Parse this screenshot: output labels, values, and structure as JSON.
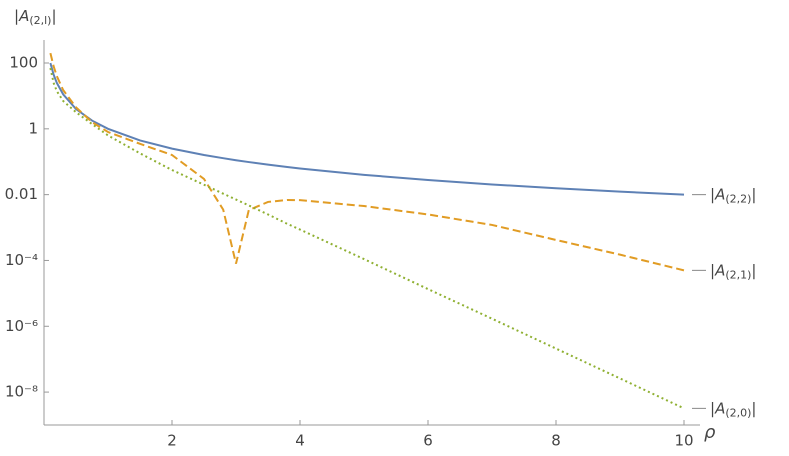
{
  "chart_data": {
    "type": "line",
    "log_y": true,
    "ylabel": "|A(2,l)|",
    "xlabel": "ρ",
    "x": [
      0.1,
      0.15,
      0.2,
      0.3,
      0.5,
      0.75,
      1,
      1.5,
      2,
      2.5,
      2.8,
      3,
      3.2,
      3.5,
      3.8,
      4,
      5,
      6,
      7,
      8,
      9,
      10
    ],
    "series": [
      {
        "name": "|A(2,2)|",
        "color": "#5e81b5",
        "dash": "solid",
        "values": [
          100,
          44.4,
          25,
          11.1,
          4,
          1.78,
          1,
          0.444,
          0.25,
          0.16,
          0.128,
          0.111,
          0.0977,
          0.0816,
          0.0693,
          0.0625,
          0.04,
          0.0278,
          0.0204,
          0.0156,
          0.0123,
          0.01
        ]
      },
      {
        "name": "|A(2,1)|",
        "color": "#e19c24",
        "dash": "dashed",
        "values": [
          200,
          80,
          40,
          15,
          4.5,
          1.6,
          0.8,
          0.35,
          0.16,
          0.03,
          0.0035,
          8e-05,
          0.0034,
          0.006,
          0.0069,
          0.0068,
          0.0045,
          0.0025,
          0.0012,
          0.00042,
          0.00015,
          5e-05
        ]
      },
      {
        "name": "|A(2,0)|",
        "color": "#8fb032",
        "dash": "dotted",
        "values": [
          70,
          25,
          14,
          7,
          3.2,
          1.4,
          0.63,
          0.18,
          0.056,
          0.02,
          0.0107,
          0.0071,
          0.0047,
          0.0025,
          0.0013,
          0.00087,
          0.00011,
          1.35e-05,
          1.7e-06,
          2.1e-07,
          2.6e-08,
          3.2e-09
        ]
      }
    ],
    "xlim": [
      0,
      10.25
    ],
    "xticks": [
      2,
      4,
      6,
      8,
      10
    ],
    "ylim": [
      1e-09,
      500
    ],
    "yticks": [
      100,
      1,
      0.01,
      {
        "value": 0.0001,
        "label": "10⁻⁴"
      },
      {
        "value": 1e-06,
        "label": "10⁻⁶"
      },
      {
        "value": 1e-08,
        "label": "10⁻⁸"
      }
    ]
  }
}
